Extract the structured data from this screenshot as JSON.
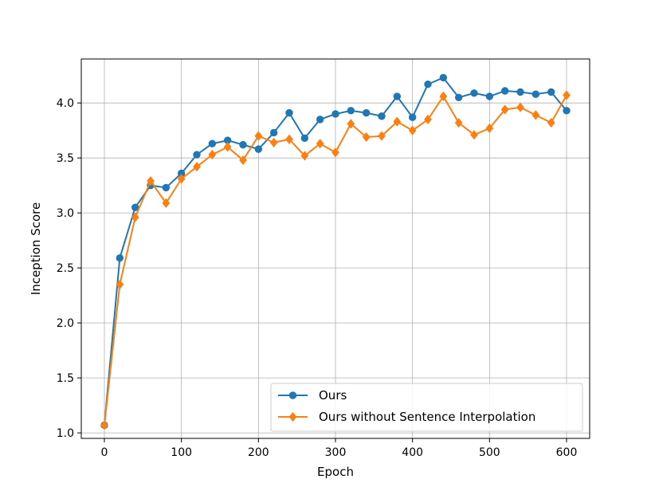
{
  "chart_data": {
    "type": "line",
    "title": "",
    "xlabel": "Epoch",
    "ylabel": "Inception Score",
    "xlim": [
      -30,
      630
    ],
    "ylim": [
      0.95,
      4.4
    ],
    "xticks": [
      0,
      100,
      200,
      300,
      400,
      500,
      600
    ],
    "yticks": [
      1.0,
      1.5,
      2.0,
      2.5,
      3.0,
      3.5,
      4.0
    ],
    "ytick_labels": [
      "1.0",
      "1.5",
      "2.0",
      "2.5",
      "3.0",
      "3.5",
      "4.0"
    ],
    "grid": true,
    "legend_position": "lower-right",
    "x": [
      0,
      20,
      40,
      60,
      80,
      100,
      120,
      140,
      160,
      180,
      200,
      220,
      240,
      260,
      280,
      300,
      320,
      340,
      360,
      380,
      400,
      420,
      440,
      460,
      480,
      500,
      520,
      540,
      560,
      580,
      600
    ],
    "series": [
      {
        "name": "Ours",
        "color": "#1f77b4",
        "marker": "circle",
        "values": [
          1.07,
          2.59,
          3.05,
          3.25,
          3.23,
          3.36,
          3.53,
          3.63,
          3.66,
          3.62,
          3.58,
          3.73,
          3.91,
          3.68,
          3.85,
          3.9,
          3.93,
          3.91,
          3.88,
          4.06,
          3.87,
          4.17,
          4.23,
          4.05,
          4.09,
          4.06,
          4.11,
          4.1,
          4.08,
          4.1,
          3.93
        ]
      },
      {
        "name": "Ours without Sentence Interpolation",
        "color": "#ff7f0e",
        "marker": "diamond",
        "values": [
          1.07,
          2.35,
          2.96,
          3.29,
          3.09,
          3.31,
          3.42,
          3.53,
          3.6,
          3.48,
          3.7,
          3.64,
          3.67,
          3.52,
          3.63,
          3.55,
          3.81,
          3.69,
          3.7,
          3.83,
          3.75,
          3.85,
          4.06,
          3.82,
          3.71,
          3.77,
          3.94,
          3.96,
          3.89,
          3.82,
          4.07
        ]
      }
    ]
  }
}
